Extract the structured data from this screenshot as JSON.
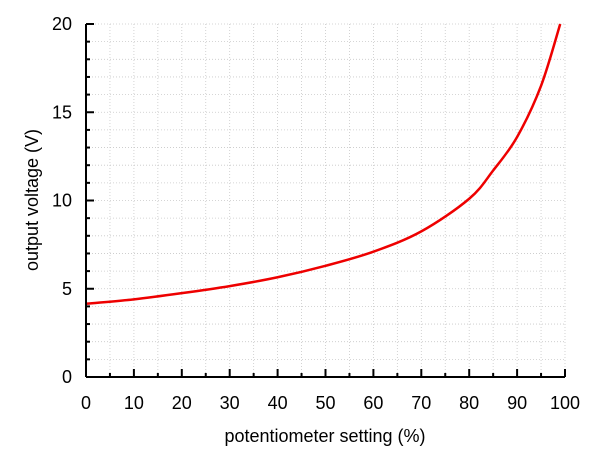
{
  "chart_data": {
    "type": "line",
    "title": "",
    "xlabel": "potentiometer setting (%)",
    "ylabel": "output voltage (V)",
    "xlim": [
      0,
      100
    ],
    "ylim": [
      0,
      20
    ],
    "x_ticks": [
      "0",
      "10",
      "20",
      "30",
      "40",
      "50",
      "60",
      "70",
      "80",
      "90",
      "100"
    ],
    "y_ticks": [
      "0",
      "5",
      "10",
      "15",
      "20"
    ],
    "grid": true,
    "series": [
      {
        "color": "#ee0000",
        "x": [
          0,
          10,
          20,
          30,
          40,
          50,
          60,
          70,
          80,
          85,
          90,
          95,
          99
        ],
        "y": [
          4.15,
          4.4,
          4.75,
          5.15,
          5.65,
          6.3,
          7.1,
          8.25,
          10.1,
          11.7,
          13.6,
          16.5,
          20.0
        ]
      }
    ]
  }
}
